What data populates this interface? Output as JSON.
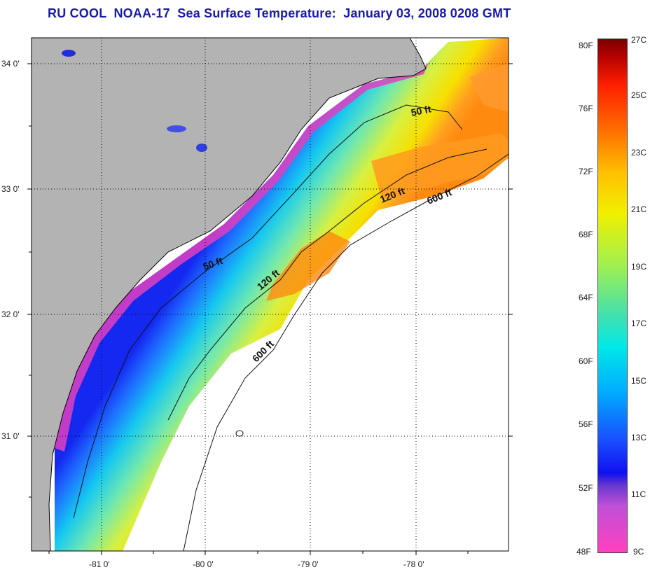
{
  "title": "RU COOL  NOAA-17  Sea Surface Temperature:  January 03, 2008 0208 GMT",
  "map": {
    "lat_labels": [
      "34 0'",
      "33 0'",
      "32 0'",
      "31 0'"
    ],
    "lon_labels": [
      "-81 0'",
      "-80 0'",
      "-79 0'",
      "-78 0'"
    ],
    "isobath_labels": [
      "50 ft",
      "50 ft",
      "120 ft",
      "120 ft",
      "600 ft",
      "600 ft"
    ],
    "colors": {
      "land": "#b3b3b3",
      "ocean_no_data": "#ffffff",
      "coastline": "#000000",
      "grid": "#000000"
    }
  },
  "colorbar": {
    "fahrenheit": [
      "80F",
      "76F",
      "72F",
      "68F",
      "64F",
      "60F",
      "56F",
      "52F",
      "48F"
    ],
    "celsius": [
      "27C",
      "25C",
      "23C",
      "21C",
      "19C",
      "17C",
      "15C",
      "13C",
      "11C",
      "9C"
    ]
  }
}
